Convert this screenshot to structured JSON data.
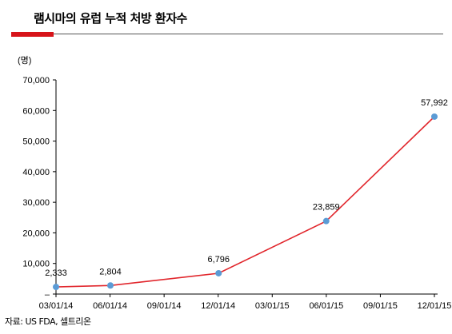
{
  "header": {
    "title": "램시마의 유럽 누적 처방 환자수"
  },
  "footer": {
    "source": "자료: US FDA, 셀트리온"
  },
  "colors": {
    "accent": "#d7141a",
    "line": "#e1262c",
    "marker": "#5b9bd5"
  },
  "chart_data": {
    "type": "line",
    "title": "램시마의 유럽 누적 처방 환자수",
    "unit_label": "(명)",
    "x_ticks": [
      "03/01/14",
      "06/01/14",
      "09/01/14",
      "12/01/14",
      "03/01/15",
      "06/01/15",
      "09/01/15",
      "12/01/15"
    ],
    "y_ticks": [
      "–",
      "10,000",
      "20,000",
      "30,000",
      "40,000",
      "50,000",
      "60,000",
      "70,000"
    ],
    "ylim": [
      0,
      70000
    ],
    "xlim": [
      "2014-03-01",
      "2015-12-01"
    ],
    "grid": false,
    "series": [
      {
        "points": [
          {
            "x": "2014-03-01",
            "y": 2333,
            "label": "2,333"
          },
          {
            "x": "2014-06-01",
            "y": 2804,
            "label": "2,804"
          },
          {
            "x": "2014-12-01",
            "y": 6796,
            "label": "6,796"
          },
          {
            "x": "2015-06-01",
            "y": 23859,
            "label": "23,859"
          },
          {
            "x": "2015-12-01",
            "y": 57992,
            "label": "57,992"
          }
        ]
      }
    ]
  }
}
